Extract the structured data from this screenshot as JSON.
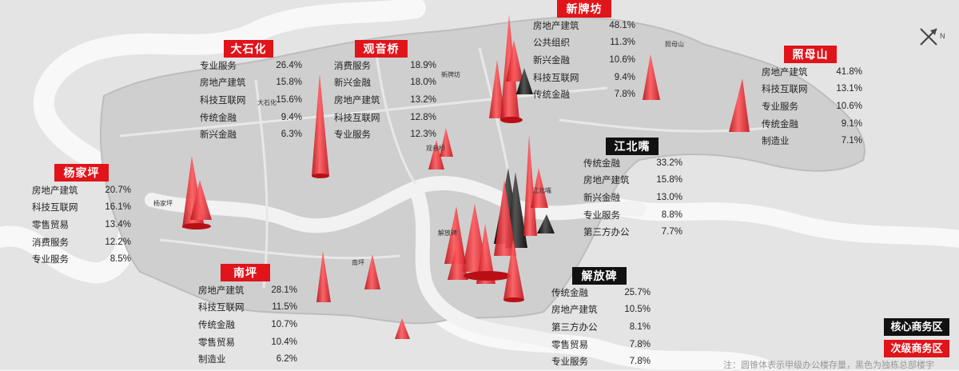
{
  "colors": {
    "core": "#111111",
    "secondary": "#e0141a",
    "map_bg": "#efefef",
    "district": "#cdcdcd",
    "river": "#f7f7f7"
  },
  "compass": {
    "letter": "N"
  },
  "legend": {
    "core_label": "核心商务区",
    "secondary_label": "次级商务区"
  },
  "footnote": "注：圆锥体表示甲级办公楼存量，黑色为独栋总部楼宇",
  "map_labels": {
    "dashihua": "大石化",
    "xinpaifang": "新牌坊",
    "zhaomushan": "照母山",
    "yangjiaping": "杨家坪",
    "guanyinqiao": "观音桥",
    "jiangbeizui": "江北嘴",
    "jiefangbei": "解放碑",
    "nanping": "南坪"
  },
  "panels": {
    "dashihua": {
      "title": "大石化",
      "type": "secondary",
      "rows": [
        {
          "name": "专业服务",
          "value": "26.4%"
        },
        {
          "name": "房地产建筑",
          "value": "15.8%"
        },
        {
          "name": "科技互联网",
          "value": "15.6%"
        },
        {
          "name": "传统金融",
          "value": "9.4%"
        },
        {
          "name": "新兴金融",
          "value": "6.3%"
        }
      ]
    },
    "guanyinqiao": {
      "title": "观音桥",
      "type": "secondary",
      "rows": [
        {
          "name": "消费服务",
          "value": "18.9%"
        },
        {
          "name": "新兴金融",
          "value": "18.0%"
        },
        {
          "name": "房地产建筑",
          "value": "13.2%"
        },
        {
          "name": "科技互联网",
          "value": "12.8%"
        },
        {
          "name": "专业服务",
          "value": "12.3%"
        }
      ]
    },
    "xinpaifang": {
      "title": "新牌坊",
      "type": "secondary",
      "rows": [
        {
          "name": "房地产建筑",
          "value": "48.1%"
        },
        {
          "name": "公共组织",
          "value": "11.3%"
        },
        {
          "name": "新兴金融",
          "value": "10.6%"
        },
        {
          "name": "科技互联网",
          "value": "9.4%"
        },
        {
          "name": "传统金融",
          "value": "7.8%"
        }
      ]
    },
    "zhaomushan": {
      "title": "照母山",
      "type": "secondary",
      "rows": [
        {
          "name": "房地产建筑",
          "value": "41.8%"
        },
        {
          "name": "科技互联网",
          "value": "13.1%"
        },
        {
          "name": "专业服务",
          "value": "10.6%"
        },
        {
          "name": "传统金融",
          "value": "9.1%"
        },
        {
          "name": "制造业",
          "value": "7.1%"
        }
      ]
    },
    "yangjiaping": {
      "title": "杨家坪",
      "type": "secondary",
      "rows": [
        {
          "name": "房地产建筑",
          "value": "20.7%"
        },
        {
          "name": "科技互联网",
          "value": "16.1%"
        },
        {
          "name": "零售贸易",
          "value": "13.4%"
        },
        {
          "name": "消费服务",
          "value": "12.2%"
        },
        {
          "name": "专业服务",
          "value": "8.5%"
        }
      ]
    },
    "jiangbeizui": {
      "title": "江北嘴",
      "type": "core",
      "rows": [
        {
          "name": "传统金融",
          "value": "33.2%"
        },
        {
          "name": "房地产建筑",
          "value": "15.8%"
        },
        {
          "name": "新兴金融",
          "value": "13.0%"
        },
        {
          "name": "专业服务",
          "value": "8.8%"
        },
        {
          "name": "第三方办公",
          "value": "7.7%"
        }
      ]
    },
    "nanping": {
      "title": "南坪",
      "type": "secondary",
      "rows": [
        {
          "name": "房地产建筑",
          "value": "28.1%"
        },
        {
          "name": "科技互联网",
          "value": "11.5%"
        },
        {
          "name": "传统金融",
          "value": "10.7%"
        },
        {
          "name": "零售贸易",
          "value": "10.4%"
        },
        {
          "name": "制造业",
          "value": "6.2%"
        }
      ]
    },
    "jiefangbei": {
      "title": "解放碑",
      "type": "core",
      "rows": [
        {
          "name": "传统金融",
          "value": "25.7%"
        },
        {
          "name": "房地产建筑",
          "value": "10.5%"
        },
        {
          "name": "第三方办公",
          "value": "8.1%"
        },
        {
          "name": "零售贸易",
          "value": "7.8%"
        },
        {
          "name": "专业服务",
          "value": "7.8%"
        }
      ]
    }
  }
}
